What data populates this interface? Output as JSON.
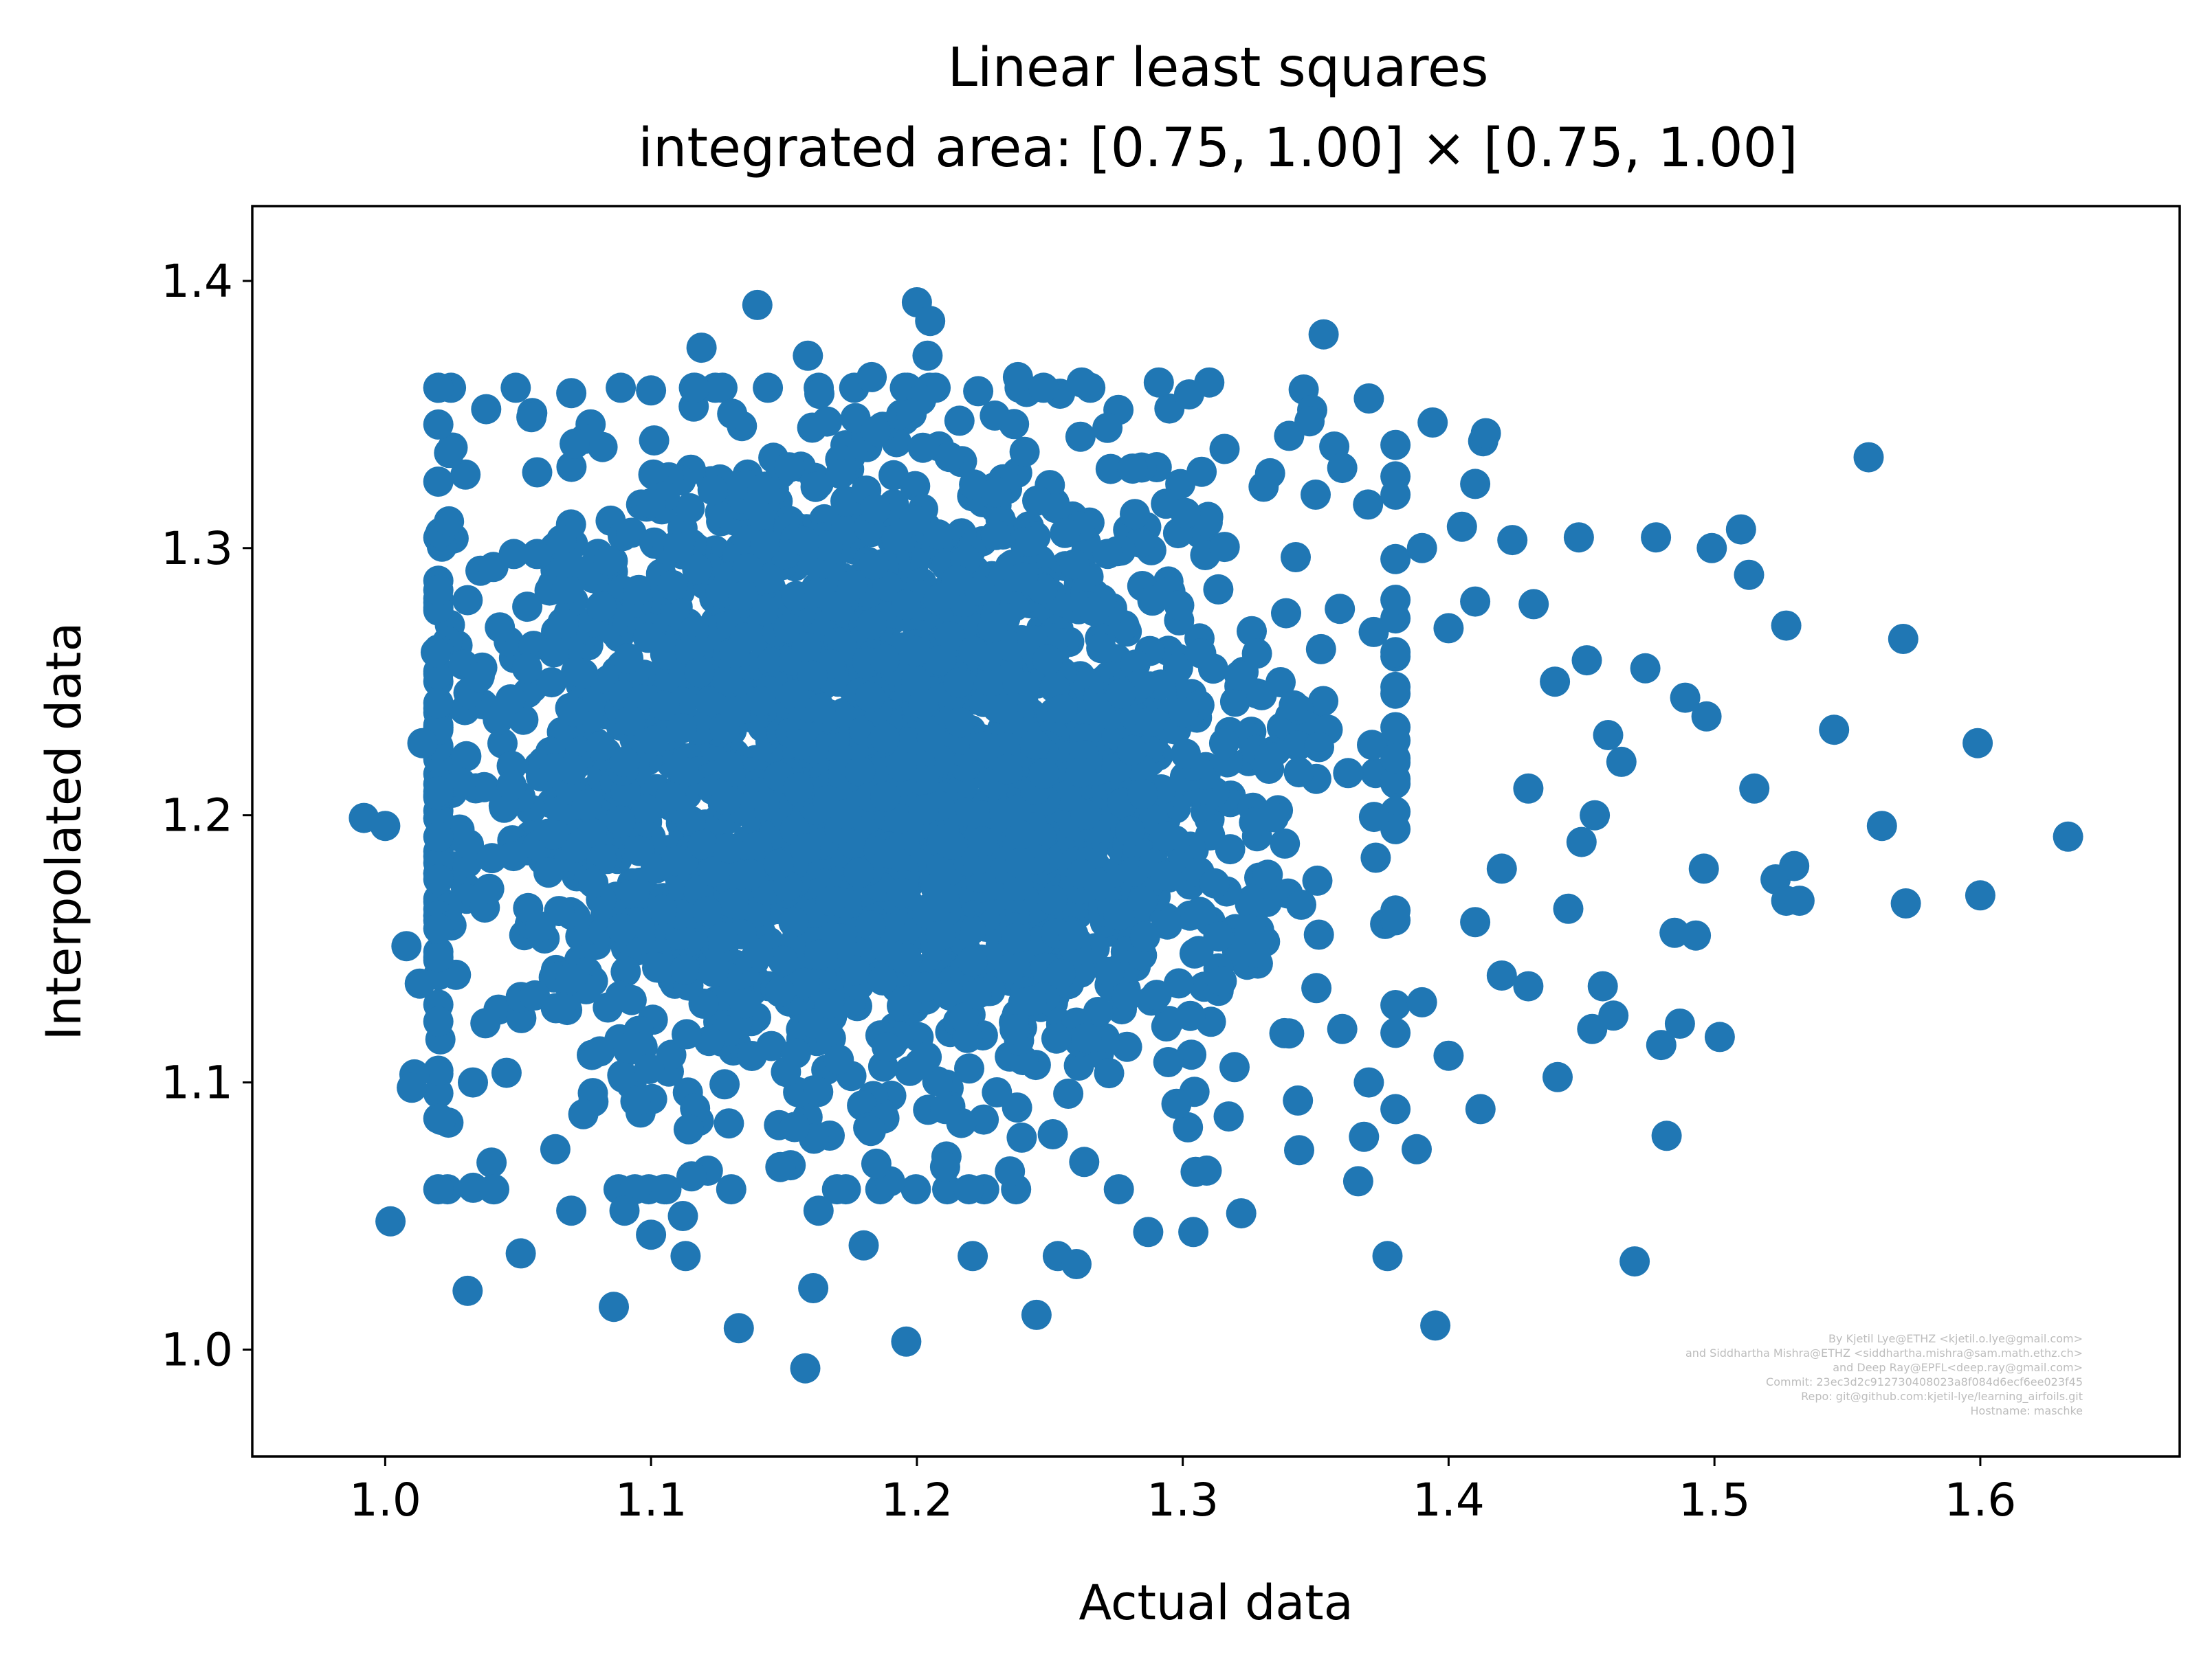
{
  "chart_data": {
    "type": "scatter",
    "title_line1": "Linear least squares",
    "title_line2": "integrated area: [0.75, 1.00] × [0.75, 1.00]",
    "xlabel": "Actual data",
    "ylabel": "Interpolated data",
    "xlim": [
      0.95,
      1.675
    ],
    "ylim": [
      0.96,
      1.428
    ],
    "xticks": [
      1.0,
      1.1,
      1.2,
      1.3,
      1.4,
      1.5,
      1.6
    ],
    "yticks": [
      1.0,
      1.1,
      1.2,
      1.3,
      1.4
    ],
    "xtick_labels": [
      "1.0",
      "1.1",
      "1.2",
      "1.3",
      "1.4",
      "1.5",
      "1.6"
    ],
    "ytick_labels": [
      "1.0",
      "1.1",
      "1.2",
      "1.3",
      "1.4"
    ],
    "grid": false,
    "legend": "none",
    "marker_color": "#2077b4",
    "dense_cluster": {
      "center": [
        1.18,
        1.215
      ],
      "x_extent": [
        1.02,
        1.38
      ],
      "y_extent": [
        1.06,
        1.36
      ]
    },
    "points": [
      [
        0.992,
        1.199
      ],
      [
        1.0,
        1.196
      ],
      [
        1.002,
        1.048
      ],
      [
        1.008,
        1.151
      ],
      [
        1.011,
        1.103
      ],
      [
        1.01,
        1.098
      ],
      [
        1.013,
        1.137
      ],
      [
        1.014,
        1.227
      ],
      [
        1.019,
        1.261
      ],
      [
        1.021,
        1.086
      ],
      [
        1.024,
        1.31
      ],
      [
        1.031,
        1.022
      ],
      [
        1.033,
        1.1
      ],
      [
        1.038,
        1.352
      ],
      [
        1.04,
        1.07
      ],
      [
        1.041,
        1.06
      ],
      [
        1.051,
        1.036
      ],
      [
        1.055,
        1.349
      ],
      [
        1.064,
        1.075
      ],
      [
        1.07,
        1.052
      ],
      [
        1.07,
        1.358
      ],
      [
        1.086,
        1.016
      ],
      [
        1.09,
        1.052
      ],
      [
        1.1,
        1.043
      ],
      [
        1.1,
        1.359
      ],
      [
        1.112,
        1.05
      ],
      [
        1.113,
        1.035
      ],
      [
        1.119,
        1.375
      ],
      [
        1.133,
        1.008
      ],
      [
        1.14,
        1.391
      ],
      [
        1.159,
        1.372
      ],
      [
        1.158,
        0.993
      ],
      [
        1.161,
        1.023
      ],
      [
        1.163,
        1.052
      ],
      [
        1.18,
        1.039
      ],
      [
        1.183,
        1.364
      ],
      [
        1.196,
        1.003
      ],
      [
        1.2,
        1.392
      ],
      [
        1.205,
        1.385
      ],
      [
        1.204,
        1.372
      ],
      [
        1.221,
        1.035
      ],
      [
        1.238,
        1.364
      ],
      [
        1.245,
        1.013
      ],
      [
        1.253,
        1.035
      ],
      [
        1.26,
        1.032
      ],
      [
        1.262,
        1.362
      ],
      [
        1.287,
        1.044
      ],
      [
        1.291,
        1.362
      ],
      [
        1.304,
        1.044
      ],
      [
        1.31,
        1.362
      ],
      [
        1.309,
        1.067
      ],
      [
        1.322,
        1.051
      ],
      [
        1.34,
        1.342
      ],
      [
        1.353,
        1.38
      ],
      [
        1.357,
        1.338
      ],
      [
        1.366,
        1.063
      ],
      [
        1.37,
        1.356
      ],
      [
        1.377,
        1.035
      ],
      [
        1.388,
        1.075
      ],
      [
        1.394,
        1.347
      ],
      [
        1.395,
        1.009
      ],
      [
        1.405,
        1.308
      ],
      [
        1.41,
        1.324
      ],
      [
        1.412,
        1.09
      ],
      [
        1.413,
        1.34
      ],
      [
        1.414,
        1.343
      ],
      [
        1.424,
        1.303
      ],
      [
        1.43,
        1.136
      ],
      [
        1.432,
        1.279
      ],
      [
        1.441,
        1.102
      ],
      [
        1.449,
        1.304
      ],
      [
        1.452,
        1.258
      ],
      [
        1.454,
        1.12
      ],
      [
        1.458,
        1.136
      ],
      [
        1.462,
        1.125
      ],
      [
        1.47,
        1.033
      ],
      [
        1.474,
        1.255
      ],
      [
        1.478,
        1.304
      ],
      [
        1.48,
        1.114
      ],
      [
        1.482,
        1.08
      ],
      [
        1.485,
        1.156
      ],
      [
        1.487,
        1.122
      ],
      [
        1.489,
        1.244
      ],
      [
        1.493,
        1.155
      ],
      [
        1.496,
        1.18
      ],
      [
        1.497,
        1.237
      ],
      [
        1.499,
        1.3
      ],
      [
        1.502,
        1.117
      ],
      [
        1.51,
        1.307
      ],
      [
        1.513,
        1.29
      ],
      [
        1.515,
        1.21
      ],
      [
        1.523,
        1.176
      ],
      [
        1.527,
        1.168
      ],
      [
        1.527,
        1.271
      ],
      [
        1.53,
        1.181
      ],
      [
        1.532,
        1.168
      ],
      [
        1.545,
        1.232
      ],
      [
        1.558,
        1.334
      ],
      [
        1.563,
        1.196
      ],
      [
        1.571,
        1.266
      ],
      [
        1.572,
        1.167
      ],
      [
        1.599,
        1.227
      ],
      [
        1.6,
        1.17
      ],
      [
        1.633,
        1.192
      ],
      [
        1.42,
        1.18
      ],
      [
        1.43,
        1.21
      ],
      [
        1.44,
        1.25
      ],
      [
        1.45,
        1.19
      ],
      [
        1.46,
        1.23
      ],
      [
        1.41,
        1.16
      ],
      [
        1.42,
        1.14
      ],
      [
        1.445,
        1.165
      ],
      [
        1.455,
        1.2
      ],
      [
        1.465,
        1.22
      ],
      [
        1.4,
        1.27
      ],
      [
        1.39,
        1.3
      ],
      [
        1.38,
        1.32
      ],
      [
        1.36,
        1.33
      ],
      [
        1.35,
        1.32
      ],
      [
        1.4,
        1.11
      ],
      [
        1.38,
        1.09
      ],
      [
        1.37,
        1.1
      ],
      [
        1.36,
        1.12
      ],
      [
        1.39,
        1.13
      ],
      [
        1.41,
        1.28
      ]
    ]
  },
  "credits": [
    "By Kjetil Lye@ETHZ <kjetil.o.lye@gmail.com>",
    "and Siddhartha Mishra@ETHZ <siddhartha.mishra@sam.math.ethz.ch>",
    "and Deep Ray@EPFL<deep.ray@gmail.com>",
    "Commit: 23ec3d2c912730408023a8f084d6ecf6ee023f45",
    "Repo: git@github.com:kjetil-lye/learning_airfoils.git",
    "Hostname: maschke"
  ]
}
